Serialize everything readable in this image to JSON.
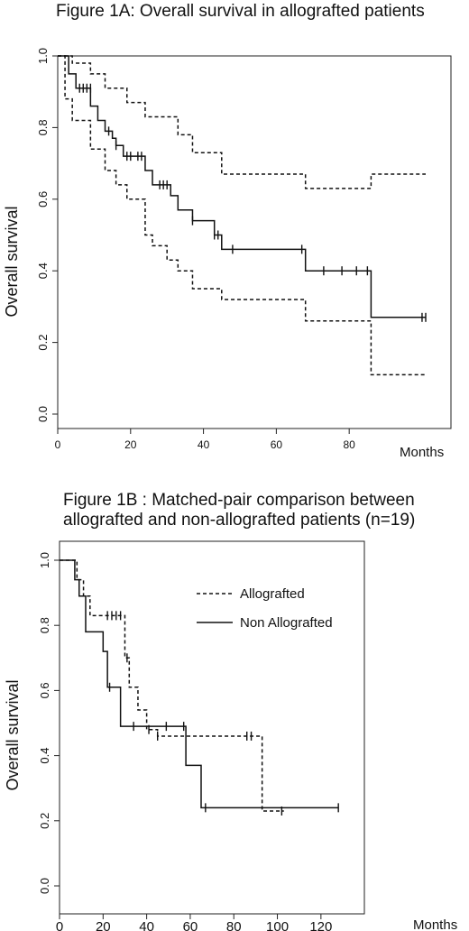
{
  "chart_data": [
    {
      "type": "line",
      "title": "Figure 1A: Overall survival in allografted patients",
      "xlabel": "Months",
      "ylabel": "Overall survival",
      "xticks": [
        "0",
        "20",
        "40",
        "60",
        "80"
      ],
      "yticks": [
        "0.0",
        "0.2",
        "0.4",
        "0.6",
        "0.8",
        "1.0"
      ],
      "xlim": [
        0,
        101
      ],
      "ylim": [
        0,
        1
      ],
      "grid": false,
      "series": [
        {
          "style": "solid",
          "x": [
            0,
            3,
            5,
            9,
            11,
            13,
            15,
            16,
            18,
            24,
            26,
            31,
            33,
            37,
            43,
            45,
            68,
            86,
            101
          ],
          "y": [
            1.0,
            0.95,
            0.91,
            0.86,
            0.82,
            0.79,
            0.77,
            0.75,
            0.72,
            0.68,
            0.64,
            0.61,
            0.57,
            0.54,
            0.5,
            0.46,
            0.4,
            0.27,
            0.27
          ],
          "censor_x": [
            6,
            7,
            8,
            9,
            14,
            16,
            19,
            20,
            22,
            23,
            28,
            29,
            30,
            37,
            43,
            44,
            48,
            67,
            73,
            78,
            82,
            85,
            100,
            101
          ],
          "censor_y": [
            0.91,
            0.91,
            0.91,
            0.91,
            0.79,
            0.75,
            0.72,
            0.72,
            0.72,
            0.72,
            0.64,
            0.64,
            0.64,
            0.54,
            0.5,
            0.5,
            0.46,
            0.46,
            0.4,
            0.4,
            0.4,
            0.4,
            0.27,
            0.27
          ]
        },
        {
          "style": "dashed",
          "x": [
            0,
            4,
            9,
            13,
            19,
            24,
            33,
            37,
            45,
            68,
            86,
            101
          ],
          "y": [
            1.0,
            0.98,
            0.95,
            0.91,
            0.87,
            0.83,
            0.78,
            0.73,
            0.67,
            0.63,
            0.67,
            0.67
          ]
        },
        {
          "style": "dashed",
          "x": [
            0,
            2,
            4,
            9,
            13,
            16,
            19,
            24,
            26,
            30,
            33,
            37,
            45,
            68,
            86,
            101
          ],
          "y": [
            1.0,
            0.88,
            0.82,
            0.74,
            0.68,
            0.64,
            0.6,
            0.5,
            0.47,
            0.43,
            0.4,
            0.35,
            0.32,
            0.26,
            0.11,
            0.11
          ]
        }
      ]
    },
    {
      "type": "line",
      "title_line1": "Figure 1B : Matched-pair comparison between",
      "title_line2": "allografted and non-allografted patients (n=19)",
      "xlabel": "Months",
      "ylabel": "Overall survival",
      "xticks": [
        "0",
        "20",
        "40",
        "60",
        "80",
        "100",
        "120"
      ],
      "yticks": [
        "0.0",
        "0.2",
        "0.4",
        "0.6",
        "0.8",
        "1.0"
      ],
      "xlim": [
        0,
        130
      ],
      "ylim": [
        0,
        1
      ],
      "grid": false,
      "legend": "top-right",
      "series": [
        {
          "name": "Allografted",
          "style": "dashed",
          "x": [
            0,
            8,
            11,
            14,
            30,
            32,
            36,
            40,
            45,
            93,
            103
          ],
          "y": [
            1.0,
            0.94,
            0.89,
            0.83,
            0.7,
            0.61,
            0.54,
            0.48,
            0.46,
            0.23,
            0.23
          ],
          "censor_x": [
            22,
            24,
            26,
            28,
            31,
            41,
            45,
            86,
            88,
            102
          ],
          "censor_y": [
            0.83,
            0.83,
            0.83,
            0.83,
            0.7,
            0.48,
            0.46,
            0.46,
            0.46,
            0.23
          ]
        },
        {
          "name": "Non Allografted",
          "style": "solid",
          "x": [
            0,
            7,
            9,
            12,
            20,
            22,
            28,
            58,
            65,
            128
          ],
          "y": [
            1.0,
            0.94,
            0.89,
            0.78,
            0.72,
            0.61,
            0.49,
            0.37,
            0.24,
            0.24
          ],
          "censor_x": [
            23,
            34,
            49,
            57,
            67,
            128
          ],
          "censor_y": [
            0.61,
            0.49,
            0.49,
            0.49,
            0.24,
            0.24
          ]
        }
      ]
    }
  ]
}
